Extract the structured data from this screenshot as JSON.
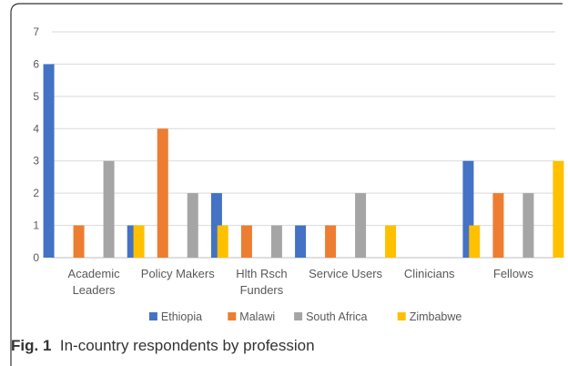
{
  "caption": {
    "label": "Fig. 1",
    "text": "In-country respondents by profession"
  },
  "chart_data": {
    "type": "bar",
    "title": "",
    "xlabel": "",
    "ylabel": "",
    "ylim": [
      0,
      7
    ],
    "yticks": [
      "0",
      "1",
      "2",
      "3",
      "4",
      "5",
      "6",
      "7"
    ],
    "grid": true,
    "legend_position": "bottom",
    "categories": [
      [
        "Academic",
        "Leaders"
      ],
      [
        "Policy Makers"
      ],
      [
        "Hlth Rsch",
        "Funders"
      ],
      [
        "Service Users"
      ],
      [
        "Clinicians"
      ],
      [
        "Fellows"
      ]
    ],
    "series": [
      {
        "name": "Ethiopia",
        "color": "#4472C4",
        "values": [
          6,
          1,
          2,
          1,
          0,
          3
        ]
      },
      {
        "name": "Malawi",
        "color": "#ED7D31",
        "values": [
          1,
          4,
          1,
          1,
          0,
          2
        ]
      },
      {
        "name": "South Africa",
        "color": "#A5A5A5",
        "values": [
          3,
          2,
          1,
          2,
          0,
          2
        ]
      },
      {
        "name": "Zimbabwe",
        "color": "#FFC000",
        "values": [
          1,
          1,
          0,
          1,
          1,
          3
        ]
      }
    ]
  }
}
